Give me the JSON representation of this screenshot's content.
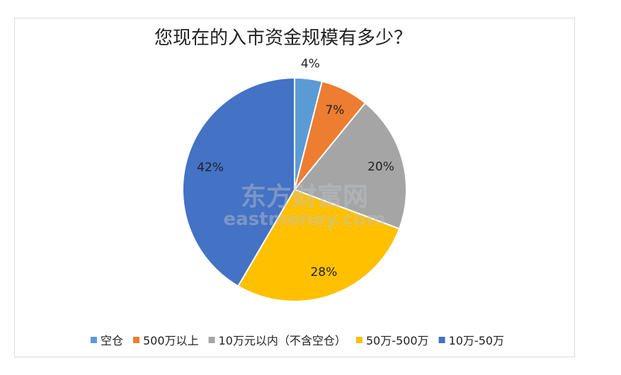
{
  "chart_data": {
    "type": "pie",
    "title": "您现在的入市资金规模有多少？",
    "categories": [
      "空仓",
      "500万以上",
      "10万元以内（不含空仓）",
      "50万-500万",
      "10万-50万"
    ],
    "values": [
      4,
      7,
      20,
      28,
      42
    ],
    "labels": [
      "4%",
      "7%",
      "20%",
      "28%",
      "42%"
    ],
    "colors": [
      "#5B9BD5",
      "#ED7D31",
      "#A5A5A5",
      "#FFC000",
      "#4472C4"
    ],
    "legend_position": "bottom"
  },
  "watermark": {
    "main": "东方财富网",
    "sub": "eastmoney.com"
  }
}
